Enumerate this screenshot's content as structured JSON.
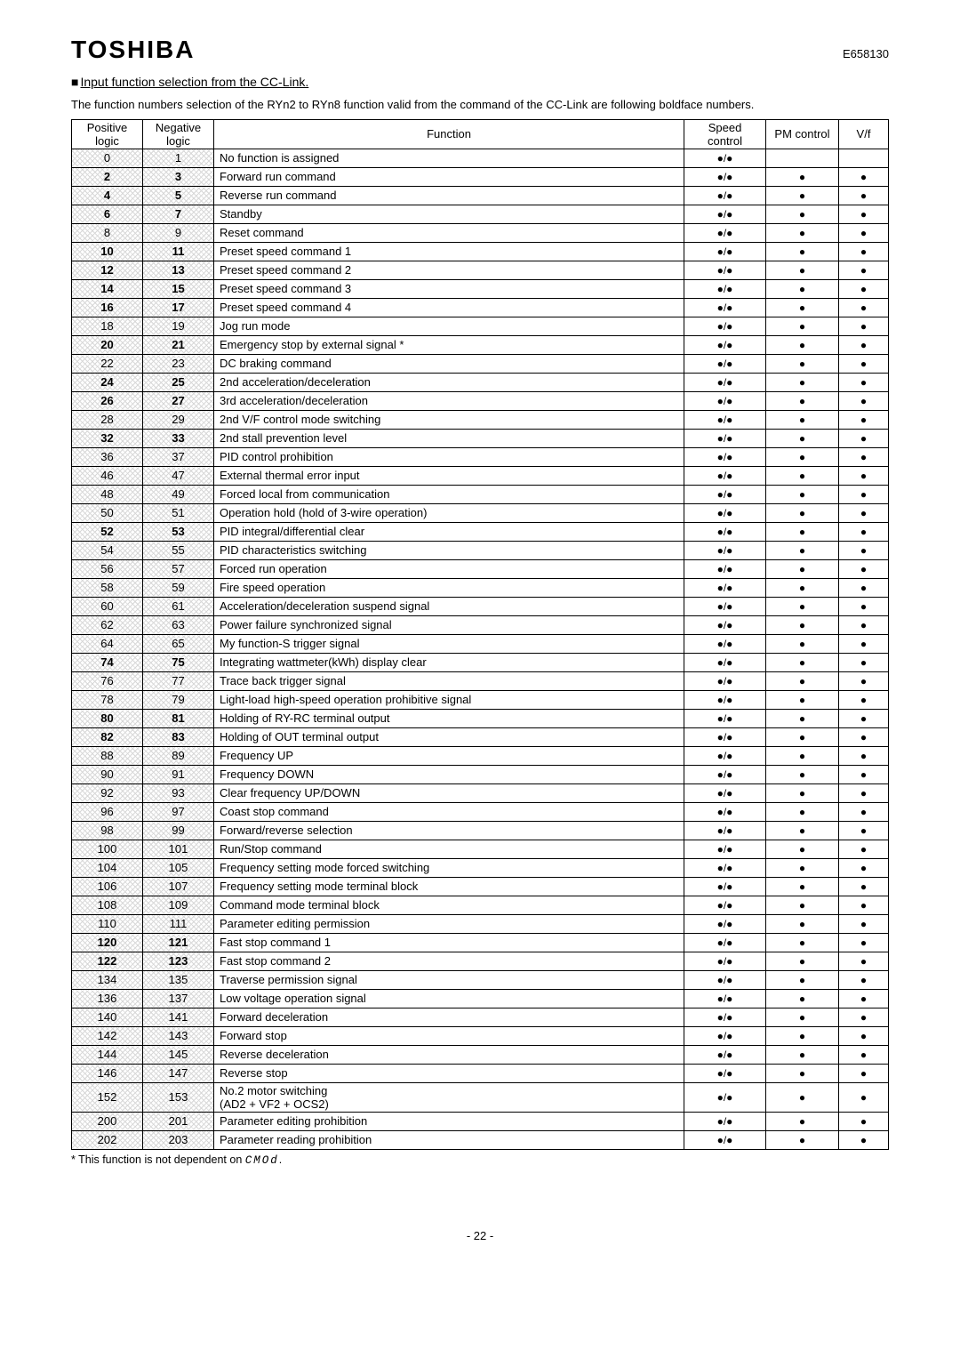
{
  "brand": "TOSHIBA",
  "docnum": "E658130",
  "section_title": "Input function selection from the CC-Link.",
  "intro": "The function numbers selection of the RYn2 to RYn8 function valid from the command of the CC-Link are following boldface numbers.",
  "columns": [
    "Positive logic",
    "Negative logic",
    "Function",
    "Speed control",
    "PM control",
    "V/f"
  ],
  "rows": [
    {
      "pos": "0",
      "neg": "1",
      "func": "No function is assigned",
      "bold": false,
      "pm": false,
      "vf": false
    },
    {
      "pos": "2",
      "neg": "3",
      "func": "Forward run command",
      "bold": true
    },
    {
      "pos": "4",
      "neg": "5",
      "func": "Reverse run command",
      "bold": true
    },
    {
      "pos": "6",
      "neg": "7",
      "func": "Standby",
      "bold": true
    },
    {
      "pos": "8",
      "neg": "9",
      "func": "Reset command",
      "bold": false
    },
    {
      "pos": "10",
      "neg": "11",
      "func": "Preset speed command 1",
      "bold": true
    },
    {
      "pos": "12",
      "neg": "13",
      "func": "Preset speed command 2",
      "bold": true
    },
    {
      "pos": "14",
      "neg": "15",
      "func": "Preset speed command 3",
      "bold": true
    },
    {
      "pos": "16",
      "neg": "17",
      "func": "Preset speed command 4",
      "bold": true
    },
    {
      "pos": "18",
      "neg": "19",
      "func": "Jog run mode",
      "bold": false
    },
    {
      "pos": "20",
      "neg": "21",
      "func": "Emergency stop by external signal *",
      "bold": true
    },
    {
      "pos": "22",
      "neg": "23",
      "func": "DC braking command",
      "bold": false
    },
    {
      "pos": "24",
      "neg": "25",
      "func": "2nd acceleration/deceleration",
      "bold": true
    },
    {
      "pos": "26",
      "neg": "27",
      "func": "3rd acceleration/deceleration",
      "bold": true
    },
    {
      "pos": "28",
      "neg": "29",
      "func": "2nd V/F control mode switching",
      "bold": false
    },
    {
      "pos": "32",
      "neg": "33",
      "func": "2nd stall prevention level",
      "bold": true
    },
    {
      "pos": "36",
      "neg": "37",
      "func": "PID control prohibition",
      "bold": false
    },
    {
      "pos": "46",
      "neg": "47",
      "func": "External thermal error input",
      "bold": false
    },
    {
      "pos": "48",
      "neg": "49",
      "func": "Forced local from communication",
      "bold": false
    },
    {
      "pos": "50",
      "neg": "51",
      "func": "Operation hold (hold of 3-wire operation)",
      "bold": false
    },
    {
      "pos": "52",
      "neg": "53",
      "func": "PID integral/differential clear",
      "bold": true
    },
    {
      "pos": "54",
      "neg": "55",
      "func": "PID characteristics switching",
      "bold": false
    },
    {
      "pos": "56",
      "neg": "57",
      "func": "Forced run operation",
      "bold": false
    },
    {
      "pos": "58",
      "neg": "59",
      "func": "Fire speed operation",
      "bold": false
    },
    {
      "pos": "60",
      "neg": "61",
      "func": "Acceleration/deceleration suspend signal",
      "bold": false
    },
    {
      "pos": "62",
      "neg": "63",
      "func": "Power failure synchronized signal",
      "bold": false
    },
    {
      "pos": "64",
      "neg": "65",
      "func": "My function-S trigger signal",
      "bold": false
    },
    {
      "pos": "74",
      "neg": "75",
      "func": "Integrating wattmeter(kWh) display clear",
      "bold": true
    },
    {
      "pos": "76",
      "neg": "77",
      "func": "Trace back trigger signal",
      "bold": false
    },
    {
      "pos": "78",
      "neg": "79",
      "func": "Light-load high-speed operation prohibitive signal",
      "bold": false
    },
    {
      "pos": "80",
      "neg": "81",
      "func": "Holding of RY-RC terminal output",
      "bold": true
    },
    {
      "pos": "82",
      "neg": "83",
      "func": "Holding of OUT terminal output",
      "bold": true
    },
    {
      "pos": "88",
      "neg": "89",
      "func": "Frequency UP",
      "bold": false
    },
    {
      "pos": "90",
      "neg": "91",
      "func": "Frequency DOWN",
      "bold": false
    },
    {
      "pos": "92",
      "neg": "93",
      "func": "Clear frequency UP/DOWN",
      "bold": false
    },
    {
      "pos": "96",
      "neg": "97",
      "func": "Coast stop command",
      "bold": false
    },
    {
      "pos": "98",
      "neg": "99",
      "func": "Forward/reverse selection",
      "bold": false
    },
    {
      "pos": "100",
      "neg": "101",
      "func": "Run/Stop command",
      "bold": false
    },
    {
      "pos": "104",
      "neg": "105",
      "func": "Frequency setting mode forced switching",
      "bold": false
    },
    {
      "pos": "106",
      "neg": "107",
      "func": "Frequency setting mode terminal block",
      "bold": false
    },
    {
      "pos": "108",
      "neg": "109",
      "func": "Command mode terminal block",
      "bold": false
    },
    {
      "pos": "110",
      "neg": "111",
      "func": "Parameter editing permission",
      "bold": false
    },
    {
      "pos": "120",
      "neg": "121",
      "func": "Fast stop command 1",
      "bold": true
    },
    {
      "pos": "122",
      "neg": "123",
      "func": "Fast stop command 2",
      "bold": true
    },
    {
      "pos": "134",
      "neg": "135",
      "func": "Traverse permission signal",
      "bold": false
    },
    {
      "pos": "136",
      "neg": "137",
      "func": "Low voltage operation signal",
      "bold": false
    },
    {
      "pos": "140",
      "neg": "141",
      "func": "Forward  deceleration",
      "bold": false
    },
    {
      "pos": "142",
      "neg": "143",
      "func": "Forward  stop",
      "bold": false
    },
    {
      "pos": "144",
      "neg": "145",
      "func": "Reverse  deceleration",
      "bold": false
    },
    {
      "pos": "146",
      "neg": "147",
      "func": "Reverse  stop",
      "bold": false
    },
    {
      "pos": "152",
      "neg": "153",
      "func": "No.2 motor switching\n(AD2 + VF2 + OCS2)",
      "bold": false
    },
    {
      "pos": "200",
      "neg": "201",
      "func": "Parameter editing prohibition",
      "bold": false
    },
    {
      "pos": "202",
      "neg": "203",
      "func": "Parameter reading prohibition",
      "bold": false
    }
  ],
  "footnote_prefix": "* This function is not dependent on ",
  "footnote_code": "CMOd",
  "footnote_suffix": ".",
  "pagenum": "- 22 -"
}
